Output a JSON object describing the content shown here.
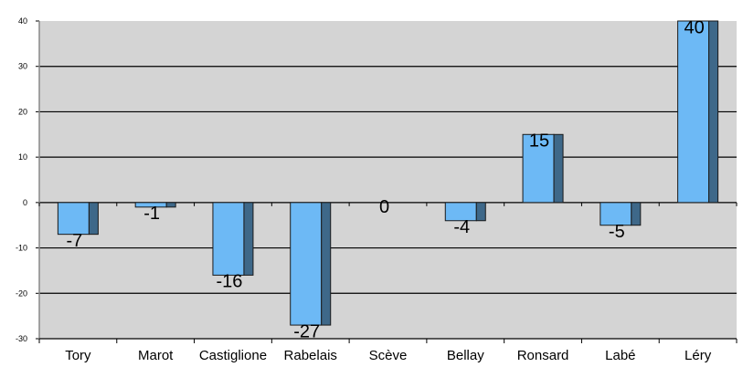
{
  "chart_data": {
    "type": "bar",
    "categories": [
      "Tory",
      "Marot",
      "Castiglione",
      "Rabelais",
      "Scève",
      "Bellay",
      "Ronsard",
      "Labé",
      "Léry"
    ],
    "values": [
      -7,
      -1,
      -16,
      -27,
      0,
      -4,
      15,
      -5,
      40
    ],
    "data_labels": [
      "-7",
      "-1",
      "-16",
      "-27",
      "0",
      "-4",
      "15",
      "-5",
      "40"
    ],
    "y_ticks": [
      -30,
      -20,
      -10,
      0,
      10,
      20,
      30,
      40
    ],
    "ylim": [
      -30,
      40
    ],
    "grid": true,
    "legend": "none",
    "colors": {
      "plot_bg": "#d4d4d4",
      "bar_front": "#6db9f5",
      "bar_side": "#3e6889",
      "grid": "#000000"
    }
  }
}
